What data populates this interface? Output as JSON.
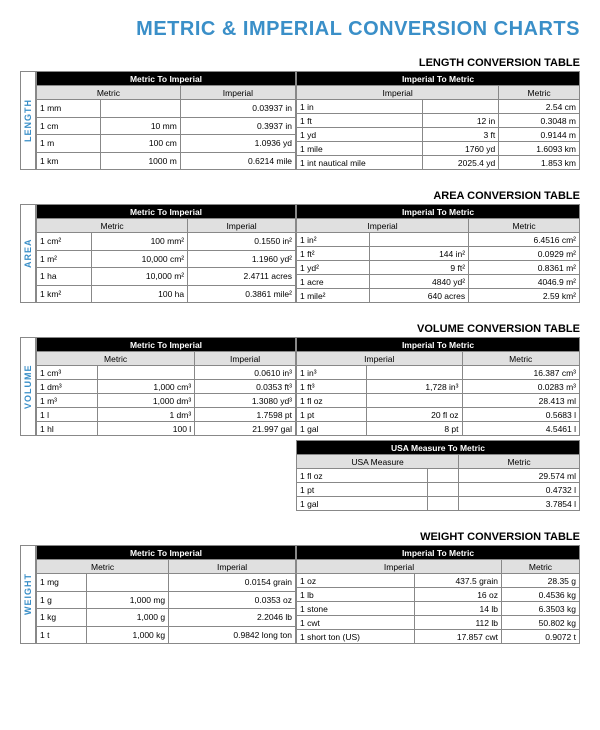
{
  "title": "METRIC & IMPERIAL CONVERSION CHARTS",
  "sections": [
    {
      "label": "LENGTH",
      "heading": "LENGTH CONVERSION TABLE",
      "left": {
        "top": "Metric To Imperial",
        "cols": [
          "Metric",
          "Imperial"
        ],
        "rows": [
          [
            "1 mm",
            "",
            "0.03937 in"
          ],
          [
            "1 cm",
            "10 mm",
            "0.3937 in"
          ],
          [
            "1 m",
            "100 cm",
            "1.0936 yd"
          ],
          [
            "1 km",
            "1000 m",
            "0.6214 mile"
          ]
        ]
      },
      "right": {
        "top": "Imperial To Metric",
        "cols": [
          "Imperial",
          "Metric"
        ],
        "rows": [
          [
            "1 in",
            "",
            "2.54 cm"
          ],
          [
            "1 ft",
            "12 in",
            "0.3048 m"
          ],
          [
            "1 yd",
            "3 ft",
            "0.9144 m"
          ],
          [
            "1 mile",
            "1760 yd",
            "1.6093 km"
          ],
          [
            "1 int nautical mile",
            "2025.4 yd",
            "1.853 km"
          ]
        ]
      }
    },
    {
      "label": "AREA",
      "heading": "AREA CONVERSION TABLE",
      "left": {
        "top": "Metric To Imperial",
        "cols": [
          "Metric",
          "Imperial"
        ],
        "rows": [
          [
            "1 cm²",
            "100 mm²",
            "0.1550 in²"
          ],
          [
            "1 m²",
            "10,000 cm²",
            "1.1960 yd²"
          ],
          [
            "1 ha",
            "10,000 m²",
            "2.4711 acres"
          ],
          [
            "1 km²",
            "100 ha",
            "0.3861 mile²"
          ]
        ]
      },
      "right": {
        "top": "Imperial To Metric",
        "cols": [
          "Imperial",
          "Metric"
        ],
        "rows": [
          [
            "1 in²",
            "",
            "6.4516 cm²"
          ],
          [
            "1 ft²",
            "144 in²",
            "0.0929 m²"
          ],
          [
            "1 yd²",
            "9 ft²",
            "0.8361 m²"
          ],
          [
            "1 acre",
            "4840 yd²",
            "4046.9 m²"
          ],
          [
            "1 mile²",
            "640 acres",
            "2.59 km²"
          ]
        ]
      }
    },
    {
      "label": "VOLUME",
      "heading": "VOLUME CONVERSION TABLE",
      "left": {
        "top": "Metric To Imperial",
        "cols": [
          "Metric",
          "Imperial"
        ],
        "rows": [
          [
            "1 cm³",
            "",
            "0.0610 in³"
          ],
          [
            "1 dm³",
            "1,000 cm³",
            "0.0353 ft³"
          ],
          [
            "1 m³",
            "1,000 dm³",
            "1.3080 yd³"
          ],
          [
            "1 l",
            "1 dm³",
            "1.7598 pt"
          ],
          [
            "1 hl",
            "100 l",
            "21.997 gal"
          ]
        ]
      },
      "right": {
        "top": "Imperial To Metric",
        "cols": [
          "Imperial",
          "Metric"
        ],
        "rows": [
          [
            "1 in³",
            "",
            "16.387 cm³"
          ],
          [
            "1 ft³",
            "1,728 in³",
            "0.0283 m³"
          ],
          [
            "1 fl oz",
            "",
            "28.413 ml"
          ],
          [
            "1 pt",
            "20 fl oz",
            "0.5683 l"
          ],
          [
            "1 gal",
            "8 pt",
            "4.5461 l"
          ]
        ]
      },
      "extra": {
        "top": "USA Measure To Metric",
        "cols": [
          "USA Measure",
          "Metric"
        ],
        "rows": [
          [
            "1 fl oz",
            "",
            "29.574 ml"
          ],
          [
            "1 pt",
            "",
            "0.4732 l"
          ],
          [
            "1 gal",
            "",
            "3.7854 l"
          ]
        ]
      }
    },
    {
      "label": "WEIGHT",
      "heading": "WEIGHT CONVERSION TABLE",
      "left": {
        "top": "Metric To Imperial",
        "cols": [
          "Metric",
          "Imperial"
        ],
        "rows": [
          [
            "1 mg",
            "",
            "0.0154 grain"
          ],
          [
            "1 g",
            "1,000 mg",
            "0.0353 oz"
          ],
          [
            "1 kg",
            "1,000 g",
            "2.2046 lb"
          ],
          [
            "1 t",
            "1,000 kg",
            "0.9842 long ton"
          ]
        ]
      },
      "right": {
        "top": "Imperial To Metric",
        "cols": [
          "Imperial",
          "Metric"
        ],
        "rows": [
          [
            "1 oz",
            "437.5 grain",
            "28.35 g"
          ],
          [
            "1 lb",
            "16 oz",
            "0.4536 kg"
          ],
          [
            "1 stone",
            "14 lb",
            "6.3503 kg"
          ],
          [
            "1 cwt",
            "112 lb",
            "50.802 kg"
          ],
          [
            "1 short ton (US)",
            "17.857 cwt",
            "0.9072 t"
          ]
        ]
      }
    }
  ]
}
